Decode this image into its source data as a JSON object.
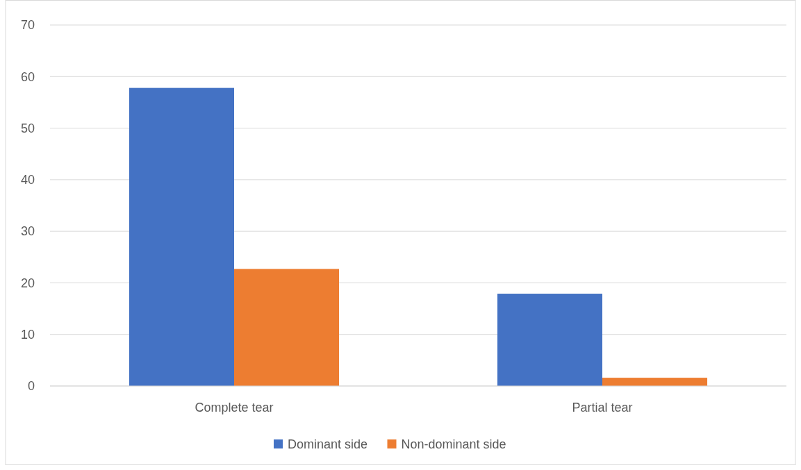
{
  "chart_data": {
    "type": "bar",
    "categories": [
      "Complete tear",
      "Partial tear"
    ],
    "series": [
      {
        "name": "Dominant side",
        "color": "#4472c4",
        "values": [
          57.8,
          17.9
        ]
      },
      {
        "name": "Non-dominant side",
        "color": "#ed7d31",
        "values": [
          22.7,
          1.6
        ]
      }
    ],
    "ylim": [
      0,
      70
    ],
    "yticks": [
      0,
      10,
      20,
      30,
      40,
      50,
      60,
      70
    ],
    "grid": "y",
    "legend": "bottom"
  }
}
